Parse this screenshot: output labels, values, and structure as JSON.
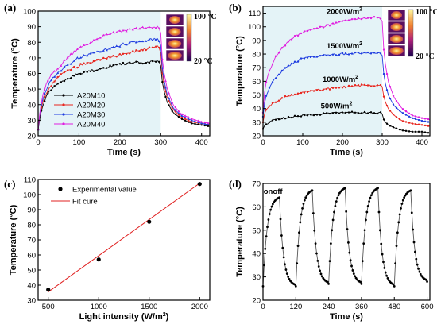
{
  "colors": {
    "A20M10": "#000000",
    "A20M20": "#e8261f",
    "A20M30": "#1f3de0",
    "A20M40": "#e01fe0",
    "fit": "#e02020",
    "shade": "#e4f3f7"
  },
  "chart_data": [
    {
      "panel": "(a)",
      "type": "line",
      "xlabel": "Time (s)",
      "ylabel": "Temperature (°C)",
      "xlim": [
        0,
        420
      ],
      "ylim": [
        20,
        100
      ],
      "xticks": [
        0,
        100,
        200,
        300,
        400
      ],
      "yticks": [
        20,
        30,
        40,
        50,
        60,
        70,
        80,
        90,
        100
      ],
      "light_on_interval": [
        0,
        300
      ],
      "colorbar": {
        "max_label": "100 °C",
        "min_label": "20 °C"
      },
      "series": [
        {
          "name": "A20M10",
          "x": [
            0,
            5,
            10,
            20,
            30,
            50,
            75,
            100,
            150,
            200,
            250,
            295,
            300,
            305,
            315,
            330,
            350,
            375,
            400,
            420
          ],
          "y": [
            24,
            33,
            38,
            45,
            49,
            54,
            57,
            60,
            63,
            66,
            67,
            68,
            65,
            52,
            42,
            35,
            31,
            28,
            27,
            26
          ]
        },
        {
          "name": "A20M20",
          "x": [
            0,
            5,
            10,
            20,
            30,
            50,
            75,
            100,
            150,
            200,
            250,
            295,
            300,
            305,
            315,
            330,
            350,
            375,
            400,
            420
          ],
          "y": [
            24,
            35,
            40,
            47,
            52,
            58,
            62,
            65,
            69,
            72,
            75,
            77,
            73,
            57,
            45,
            37,
            32,
            29,
            28,
            27
          ]
        },
        {
          "name": "A20M30",
          "x": [
            0,
            5,
            10,
            20,
            30,
            50,
            75,
            100,
            150,
            200,
            250,
            295,
            300,
            305,
            315,
            330,
            350,
            375,
            400,
            420
          ],
          "y": [
            24,
            36,
            42,
            50,
            55,
            61,
            66,
            70,
            74,
            78,
            81,
            82,
            78,
            60,
            47,
            38,
            33,
            30,
            28,
            27
          ]
        },
        {
          "name": "A20M40",
          "x": [
            0,
            5,
            10,
            20,
            30,
            50,
            75,
            100,
            150,
            200,
            250,
            295,
            300,
            305,
            315,
            330,
            350,
            375,
            400,
            420
          ],
          "y": [
            24,
            38,
            45,
            53,
            58,
            64,
            71,
            76,
            83,
            87,
            89,
            90,
            86,
            65,
            51,
            40,
            34,
            31,
            29,
            28
          ]
        }
      ]
    },
    {
      "panel": "(b)",
      "type": "line",
      "xlabel": "Time (s)",
      "ylabel": "Temperature (°C)",
      "xlim": [
        0,
        420
      ],
      "ylim": [
        20,
        115
      ],
      "xticks": [
        0,
        100,
        200,
        300,
        400
      ],
      "yticks": [
        20,
        30,
        40,
        50,
        60,
        70,
        80,
        90,
        100,
        110
      ],
      "light_on_interval": [
        0,
        300
      ],
      "colorbar": {
        "max_label": "100 °C",
        "min_label": "20 °C"
      },
      "series": [
        {
          "name": "2000W/m²",
          "color": "#e01fe0",
          "x": [
            0,
            5,
            15,
            30,
            50,
            75,
            100,
            150,
            200,
            250,
            295,
            300,
            305,
            315,
            330,
            350,
            375,
            400,
            420
          ],
          "y": [
            37,
            55,
            67,
            77,
            85,
            92,
            96,
            100,
            104,
            106,
            107,
            104,
            78,
            60,
            48,
            40,
            35,
            33,
            32
          ]
        },
        {
          "name": "1500W/m²",
          "color": "#1f3de0",
          "x": [
            0,
            5,
            15,
            30,
            50,
            75,
            100,
            150,
            200,
            250,
            295,
            300,
            305,
            315,
            330,
            350,
            375,
            400,
            420
          ],
          "y": [
            34,
            47,
            55,
            62,
            68,
            73,
            77,
            79,
            80,
            81,
            81,
            79,
            62,
            50,
            42,
            37,
            33,
            31,
            30
          ]
        },
        {
          "name": "1000W/m²",
          "color": "#e8261f",
          "x": [
            0,
            5,
            15,
            30,
            50,
            75,
            100,
            150,
            200,
            250,
            295,
            300,
            305,
            315,
            330,
            350,
            375,
            400,
            420
          ],
          "y": [
            30,
            38,
            42,
            45,
            48,
            50,
            52,
            54,
            56,
            57,
            57,
            56,
            47,
            40,
            35,
            31,
            29,
            28,
            27
          ]
        },
        {
          "name": "500W/m²",
          "color": "#000000",
          "x": [
            0,
            5,
            15,
            30,
            50,
            75,
            100,
            150,
            200,
            250,
            295,
            300,
            305,
            315,
            330,
            350,
            375,
            400,
            420
          ],
          "y": [
            25,
            28,
            30,
            32,
            33,
            34,
            35,
            36,
            37,
            37,
            37,
            36,
            31,
            28,
            26,
            24,
            23,
            23,
            22
          ]
        }
      ]
    },
    {
      "panel": "(c)",
      "type": "scatter",
      "xlabel": "Light intensity (W/m²)",
      "ylabel": "Temperature (°C)",
      "xlim": [
        400,
        2100
      ],
      "ylim": [
        30,
        110
      ],
      "xticks": [
        500,
        1000,
        1500,
        2000
      ],
      "yticks": [
        30,
        40,
        50,
        60,
        70,
        80,
        90,
        100,
        110
      ],
      "legend": [
        "Experimental value",
        "Fit cure"
      ],
      "series": [
        {
          "name": "Experimental value",
          "x": [
            500,
            1000,
            1500,
            2000
          ],
          "y": [
            37,
            57,
            82,
            107
          ]
        }
      ],
      "fit": {
        "name": "Fit cure",
        "x": [
          500,
          2000
        ],
        "y": [
          35.5,
          107.5
        ]
      }
    },
    {
      "panel": "(d)",
      "type": "line",
      "xlabel": "Time (s)",
      "ylabel": "Temperature (°C)",
      "xlim": [
        0,
        610
      ],
      "ylim": [
        20,
        70
      ],
      "xticks": [
        0,
        120,
        240,
        360,
        480,
        600
      ],
      "yticks": [
        20,
        30,
        40,
        50,
        60,
        70
      ],
      "annotations": [
        "on",
        "off"
      ],
      "cycles": [
        {
          "start": 0,
          "peak_time": 60,
          "end": 120,
          "start_temp": 26,
          "peak_temp": 64
        },
        {
          "start": 120,
          "peak_time": 180,
          "end": 240,
          "start_temp": 26,
          "peak_temp": 67
        },
        {
          "start": 240,
          "peak_time": 300,
          "end": 360,
          "start_temp": 27,
          "peak_temp": 68
        },
        {
          "start": 360,
          "peak_time": 420,
          "end": 480,
          "start_temp": 27,
          "peak_temp": 68
        },
        {
          "start": 480,
          "peak_time": 540,
          "end": 600,
          "start_temp": 26,
          "peak_temp": 67
        }
      ],
      "end_temp": 28
    }
  ]
}
